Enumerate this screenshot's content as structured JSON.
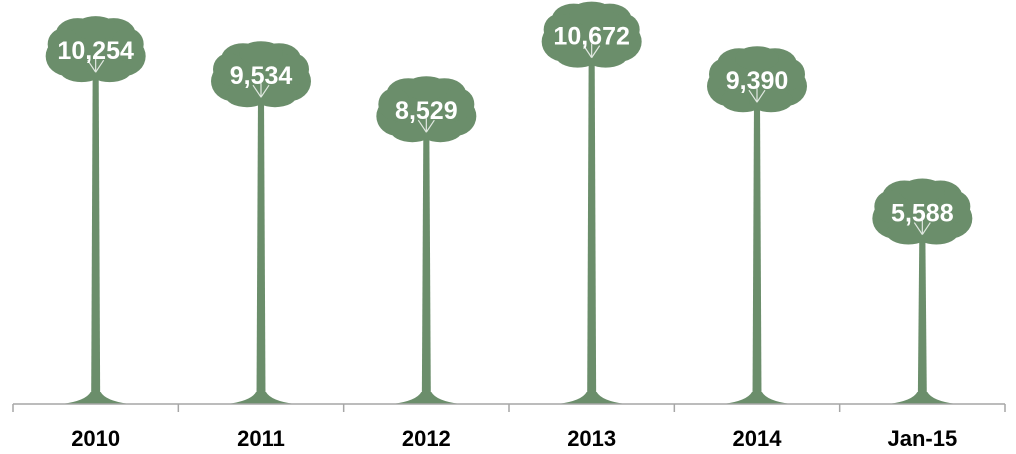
{
  "colors": {
    "tree": "#6b8e6b",
    "label": "#ffffff",
    "axis": "#a6a6a6",
    "text": "#000000"
  },
  "chart_data": {
    "type": "bar",
    "mark": "tree-pictograph",
    "categories": [
      "2010",
      "2011",
      "2012",
      "2013",
      "2014",
      "Jan-15"
    ],
    "values": [
      10254,
      9534,
      8529,
      10672,
      9390,
      5588
    ],
    "data_labels": [
      "10,254",
      "9,534",
      "8,529",
      "10,672",
      "9,390",
      "5,588"
    ],
    "title": "",
    "xlabel": "",
    "ylabel": "",
    "ylim": [
      0,
      11500
    ],
    "grid": false,
    "legend": "none"
  }
}
